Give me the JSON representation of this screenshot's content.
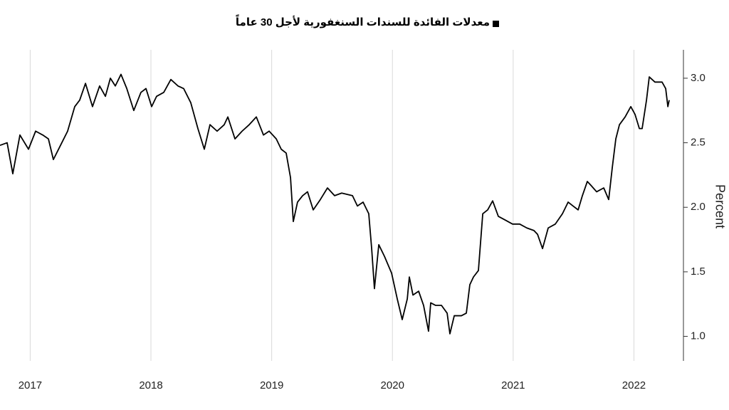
{
  "chart_data": {
    "type": "line",
    "title": "معدلات الفائدة للسندات السنغفورية لأجل 30 عاماً",
    "y_label": "Percent",
    "color": "#000000",
    "xgrid": true,
    "xlim": [
      2016.75,
      2022.41
    ],
    "ylim": [
      0.81,
      3.22
    ],
    "xticks": [
      2017,
      2018,
      2019,
      2020,
      2021,
      2022
    ],
    "yticks": [
      {
        "value": 1.0,
        "label": "1.0"
      },
      {
        "value": 1.5,
        "label": "1.5"
      },
      {
        "value": 2.0,
        "label": "2.0"
      },
      {
        "value": 2.5,
        "label": "2.5"
      },
      {
        "value": 3.0,
        "label": "3.0"
      }
    ],
    "x": [
      2016.75,
      2016.809,
      2016.856,
      2016.915,
      2016.986,
      2017.045,
      2017.104,
      2017.151,
      2017.192,
      2017.251,
      2017.31,
      2017.369,
      2017.41,
      2017.458,
      2017.516,
      2017.575,
      2017.623,
      2017.664,
      2017.705,
      2017.752,
      2017.8,
      2017.858,
      2017.917,
      2017.959,
      2018.006,
      2018.047,
      2018.106,
      2018.165,
      2018.224,
      2018.271,
      2018.33,
      2018.389,
      2018.442,
      2018.489,
      2018.548,
      2018.607,
      2018.637,
      2018.696,
      2018.755,
      2018.814,
      2018.873,
      2018.932,
      2018.979,
      2019.038,
      2019.079,
      2019.12,
      2019.156,
      2019.179,
      2019.214,
      2019.256,
      2019.297,
      2019.344,
      2019.403,
      2019.462,
      2019.521,
      2019.58,
      2019.669,
      2019.71,
      2019.757,
      2019.804,
      2019.828,
      2019.851,
      2019.887,
      2019.934,
      2019.993,
      2020.04,
      2020.081,
      2020.123,
      2020.14,
      2020.17,
      2020.217,
      2020.258,
      2020.299,
      2020.317,
      2020.358,
      2020.406,
      2020.453,
      2020.476,
      2020.512,
      2020.571,
      2020.612,
      2020.641,
      2020.671,
      2020.712,
      2020.748,
      2020.789,
      2020.83,
      2020.877,
      2020.936,
      2020.995,
      2021.054,
      2021.113,
      2021.172,
      2021.202,
      2021.243,
      2021.29,
      2021.349,
      2021.408,
      2021.455,
      2021.496,
      2021.538,
      2021.573,
      2021.614,
      2021.644,
      2021.691,
      2021.75,
      2021.791,
      2021.821,
      2021.85,
      2021.88,
      2021.927,
      2021.974,
      2022.009,
      2022.045,
      2022.068,
      2022.104,
      2022.127,
      2022.174,
      2022.233,
      2022.263,
      2022.281,
      2022.292
    ],
    "values": [
      2.48,
      2.5,
      2.26,
      2.56,
      2.45,
      2.59,
      2.56,
      2.53,
      2.37,
      2.48,
      2.59,
      2.78,
      2.83,
      2.96,
      2.78,
      2.94,
      2.86,
      3.0,
      2.94,
      3.03,
      2.92,
      2.75,
      2.89,
      2.92,
      2.78,
      2.86,
      2.89,
      2.99,
      2.94,
      2.92,
      2.81,
      2.61,
      2.45,
      2.64,
      2.59,
      2.64,
      2.7,
      2.53,
      2.59,
      2.64,
      2.7,
      2.56,
      2.59,
      2.53,
      2.45,
      2.42,
      2.23,
      1.89,
      2.04,
      2.09,
      2.12,
      1.98,
      2.06,
      2.15,
      2.09,
      2.11,
      2.09,
      2.01,
      2.04,
      1.95,
      1.68,
      1.37,
      1.71,
      1.62,
      1.49,
      1.29,
      1.13,
      1.29,
      1.46,
      1.32,
      1.35,
      1.24,
      1.04,
      1.26,
      1.24,
      1.24,
      1.18,
      1.02,
      1.16,
      1.16,
      1.18,
      1.4,
      1.46,
      1.51,
      1.95,
      1.98,
      2.05,
      1.93,
      1.9,
      1.87,
      1.87,
      1.84,
      1.82,
      1.79,
      1.68,
      1.84,
      1.87,
      1.95,
      2.04,
      2.01,
      1.98,
      2.09,
      2.2,
      2.17,
      2.12,
      2.15,
      2.06,
      2.31,
      2.53,
      2.64,
      2.7,
      2.78,
      2.72,
      2.61,
      2.61,
      2.83,
      3.01,
      2.97,
      2.97,
      2.92,
      2.78,
      2.83
    ]
  }
}
